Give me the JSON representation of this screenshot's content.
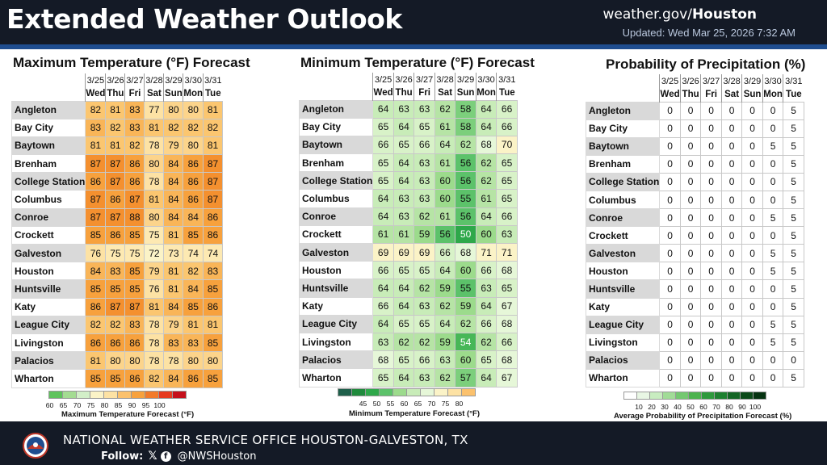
{
  "header": {
    "title": "Extended Weather Outlook",
    "site_prefix": "weather.gov/",
    "site_office": "Houston",
    "updated": "Updated: Wed Mar 25, 2026 7:32 AM"
  },
  "footer": {
    "office": "NATIONAL WEATHER SERVICE OFFICE HOUSTON-GALVESTON, TX",
    "follow_label": "Follow:",
    "handle": "@NWSHouston"
  },
  "dates": [
    "3/25",
    "3/26",
    "3/27",
    "3/28",
    "3/29",
    "3/30",
    "3/31"
  ],
  "days": [
    "Wed",
    "Thu",
    "Fri",
    "Sat",
    "Sun",
    "Mon",
    "Tue"
  ],
  "cities": [
    "Angleton",
    "Bay City",
    "Baytown",
    "Brenham",
    "College Station",
    "Columbus",
    "Conroe",
    "Crockett",
    "Galveston",
    "Houston",
    "Huntsville",
    "Katy",
    "League City",
    "Livingston",
    "Palacios",
    "Wharton"
  ],
  "max_temp": {
    "title": "Maximum Temperature (°F) Forecast",
    "values": [
      [
        82,
        81,
        83,
        77,
        80,
        80,
        81
      ],
      [
        83,
        82,
        83,
        81,
        82,
        82,
        82
      ],
      [
        81,
        81,
        82,
        78,
        79,
        80,
        81
      ],
      [
        87,
        87,
        86,
        80,
        84,
        86,
        87
      ],
      [
        86,
        87,
        86,
        78,
        84,
        86,
        87
      ],
      [
        87,
        86,
        87,
        81,
        84,
        86,
        87
      ],
      [
        87,
        87,
        88,
        80,
        84,
        84,
        86
      ],
      [
        85,
        86,
        85,
        75,
        81,
        85,
        86
      ],
      [
        76,
        75,
        75,
        72,
        73,
        74,
        74
      ],
      [
        84,
        83,
        85,
        79,
        81,
        82,
        83
      ],
      [
        85,
        85,
        85,
        76,
        81,
        84,
        85
      ],
      [
        86,
        87,
        87,
        81,
        84,
        85,
        86
      ],
      [
        82,
        82,
        83,
        78,
        79,
        81,
        81
      ],
      [
        86,
        86,
        86,
        78,
        83,
        83,
        85
      ],
      [
        81,
        80,
        80,
        78,
        78,
        80,
        80
      ],
      [
        85,
        85,
        86,
        82,
        84,
        86,
        85
      ]
    ],
    "legend_ticks": [
      "60",
      "65",
      "70",
      "75",
      "80",
      "85",
      "90",
      "95",
      "100"
    ],
    "legend_colors": [
      "#5fc35c",
      "#a4dc92",
      "#d2efc8",
      "#fbf3c7",
      "#fde2a4",
      "#fbc16d",
      "#f7a13d",
      "#f27a2a",
      "#e63a1f",
      "#c5101c"
    ],
    "legend_title": "Maximum Temperature Forecast (°F)"
  },
  "min_temp": {
    "title": "Minimum Temperature (°F) Forecast",
    "values": [
      [
        64,
        63,
        63,
        62,
        58,
        64,
        66
      ],
      [
        65,
        64,
        65,
        61,
        58,
        64,
        66
      ],
      [
        66,
        65,
        66,
        64,
        62,
        68,
        70
      ],
      [
        65,
        64,
        63,
        61,
        56,
        62,
        65
      ],
      [
        65,
        64,
        63,
        60,
        56,
        62,
        65
      ],
      [
        64,
        63,
        63,
        60,
        55,
        61,
        65
      ],
      [
        64,
        63,
        62,
        61,
        56,
        64,
        66
      ],
      [
        61,
        61,
        59,
        56,
        50,
        60,
        63
      ],
      [
        69,
        69,
        69,
        66,
        68,
        71,
        71
      ],
      [
        66,
        65,
        65,
        64,
        60,
        66,
        68
      ],
      [
        64,
        64,
        62,
        59,
        55,
        63,
        65
      ],
      [
        66,
        64,
        63,
        62,
        59,
        64,
        67
      ],
      [
        64,
        65,
        65,
        64,
        62,
        66,
        68
      ],
      [
        63,
        62,
        62,
        59,
        54,
        62,
        66
      ],
      [
        68,
        65,
        66,
        63,
        60,
        65,
        68
      ],
      [
        65,
        64,
        63,
        62,
        57,
        64,
        67
      ]
    ],
    "legend_ticks": [
      "45",
      "50",
      "55",
      "60",
      "65",
      "70",
      "75",
      "80"
    ],
    "legend_colors": [
      "#1e5f4a",
      "#1f8a3c",
      "#2ea84a",
      "#5cc26a",
      "#9cdb8c",
      "#c8ecb8",
      "#e6f7d8",
      "#fbf3c7",
      "#fde2a4",
      "#fbc16d"
    ],
    "legend_title": "Minimum Temperature Forecast (°F)"
  },
  "pop": {
    "title": "Probability of Precipitation (%)",
    "values": [
      [
        0,
        0,
        0,
        0,
        0,
        0,
        5
      ],
      [
        0,
        0,
        0,
        0,
        0,
        0,
        5
      ],
      [
        0,
        0,
        0,
        0,
        0,
        5,
        5
      ],
      [
        0,
        0,
        0,
        0,
        0,
        0,
        5
      ],
      [
        0,
        0,
        0,
        0,
        0,
        0,
        5
      ],
      [
        0,
        0,
        0,
        0,
        0,
        0,
        5
      ],
      [
        0,
        0,
        0,
        0,
        0,
        5,
        5
      ],
      [
        0,
        0,
        0,
        0,
        0,
        0,
        5
      ],
      [
        0,
        0,
        0,
        0,
        0,
        5,
        5
      ],
      [
        0,
        0,
        0,
        0,
        0,
        5,
        5
      ],
      [
        0,
        0,
        0,
        0,
        0,
        0,
        5
      ],
      [
        0,
        0,
        0,
        0,
        0,
        0,
        5
      ],
      [
        0,
        0,
        0,
        0,
        0,
        5,
        5
      ],
      [
        0,
        0,
        0,
        0,
        0,
        5,
        5
      ],
      [
        0,
        0,
        0,
        0,
        0,
        0,
        0
      ],
      [
        0,
        0,
        0,
        0,
        0,
        0,
        5
      ]
    ],
    "legend_ticks": [
      "10",
      "20",
      "30",
      "40",
      "50",
      "60",
      "70",
      "80",
      "90",
      "100"
    ],
    "legend_colors": [
      "#ffffff",
      "#e8f6e4",
      "#c8ecc0",
      "#a1dc97",
      "#74c870",
      "#4cb34e",
      "#2e9a3c",
      "#1d802f",
      "#136524",
      "#0b4a18",
      "#063311"
    ],
    "legend_title": "Average Probability of Precipitation Forecast (%)"
  }
}
